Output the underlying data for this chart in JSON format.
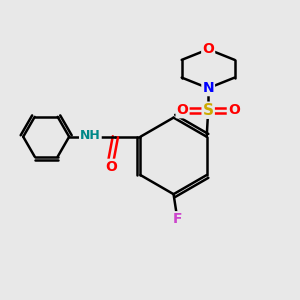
{
  "background_color": "#e8e8e8",
  "line_color": "black",
  "bond_width": 1.8,
  "figsize": [
    3.0,
    3.0
  ],
  "dpi": 100,
  "colors": {
    "O": "red",
    "N": "blue",
    "S": "#ccaa00",
    "F": "#cc44cc",
    "NH": "#008888",
    "black": "black"
  }
}
